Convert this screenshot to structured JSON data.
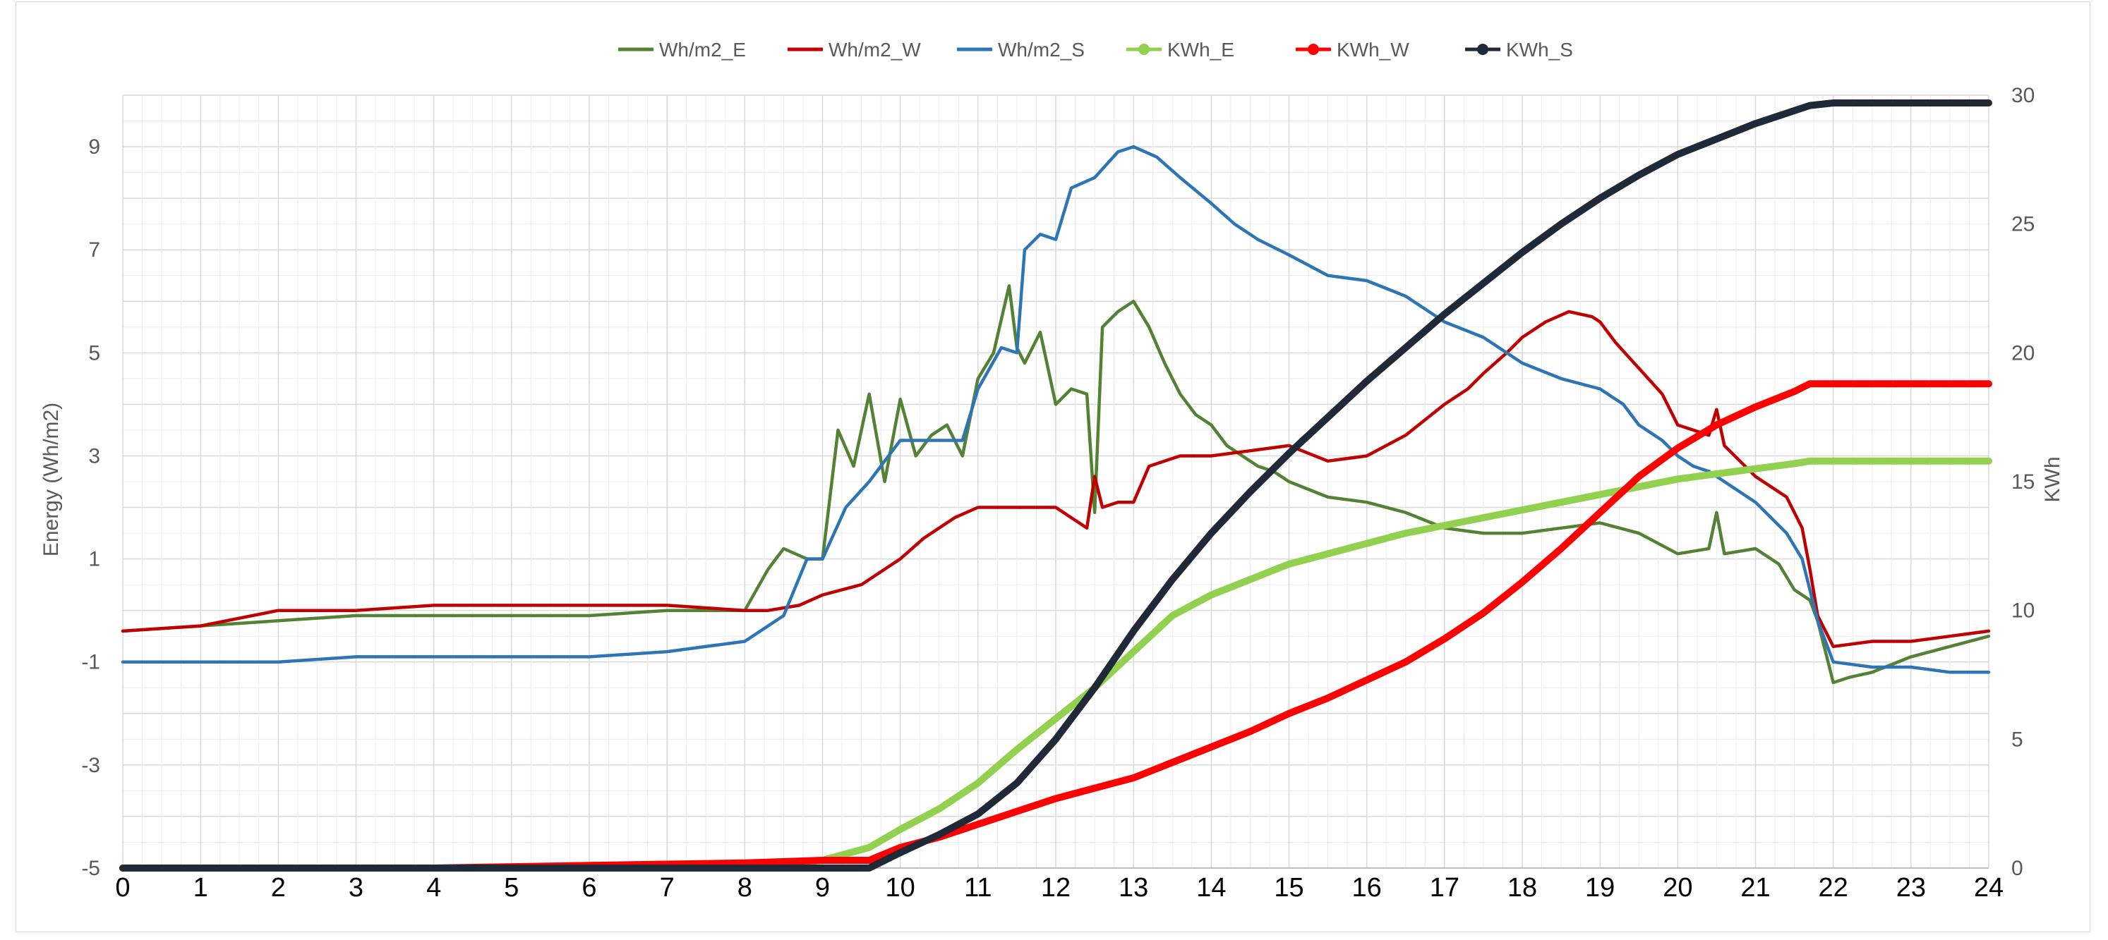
{
  "chart_data": {
    "type": "line",
    "title": "",
    "xlabel": "",
    "ylabel_left": "Energy (Wh/m2)",
    "ylabel_right": "KWh",
    "xlim": [
      0,
      24
    ],
    "ylim_left": [
      -5,
      10
    ],
    "ylim_right": [
      0,
      30
    ],
    "grid": true,
    "legend_position": "top-center",
    "x_ticks": [
      "0",
      "1",
      "2",
      "3",
      "4",
      "5",
      "6",
      "7",
      "8",
      "9",
      "10",
      "11",
      "12",
      "13",
      "14",
      "15",
      "16",
      "17",
      "18",
      "19",
      "20",
      "21",
      "22",
      "23",
      "24"
    ],
    "y_left_ticks": [
      "-5",
      "-3",
      "-1",
      "1",
      "3",
      "5",
      "7",
      "9"
    ],
    "y_right_ticks": [
      "0",
      "5",
      "10",
      "15",
      "20",
      "25",
      "30"
    ],
    "series": [
      {
        "name": "Wh/m2_E",
        "axis": "left",
        "color": "#548235",
        "marker": false,
        "x": [
          0,
          1,
          2,
          3,
          4,
          5,
          6,
          7,
          8,
          8.3,
          8.5,
          8.8,
          9,
          9.2,
          9.4,
          9.6,
          9.8,
          10,
          10.2,
          10.4,
          10.6,
          10.8,
          11,
          11.2,
          11.4,
          11.5,
          11.6,
          11.8,
          12,
          12.2,
          12.4,
          12.5,
          12.6,
          12.8,
          13,
          13.2,
          13.4,
          13.6,
          13.8,
          14,
          14.2,
          14.4,
          14.6,
          14.8,
          15,
          15.5,
          16,
          16.5,
          17,
          17.5,
          18,
          18.5,
          19,
          19.5,
          20,
          20.4,
          20.5,
          20.6,
          21,
          21.3,
          21.5,
          21.7,
          21.8,
          21.9,
          22,
          22.2,
          22.5,
          23,
          23.5,
          24
        ],
        "y": [
          -0.4,
          -0.3,
          -0.2,
          -0.1,
          -0.1,
          -0.1,
          -0.1,
          0,
          0,
          0.8,
          1.2,
          1.0,
          1.0,
          3.5,
          2.8,
          4.2,
          2.5,
          4.1,
          3.0,
          3.4,
          3.6,
          3.0,
          4.5,
          5.0,
          6.3,
          5.1,
          4.8,
          5.4,
          4.0,
          4.3,
          4.2,
          1.9,
          5.5,
          5.8,
          6.0,
          5.5,
          4.8,
          4.2,
          3.8,
          3.6,
          3.2,
          3.0,
          2.8,
          2.7,
          2.5,
          2.2,
          2.1,
          1.9,
          1.6,
          1.5,
          1.5,
          1.6,
          1.7,
          1.5,
          1.1,
          1.2,
          1.9,
          1.1,
          1.2,
          0.9,
          0.4,
          0.2,
          -0.2,
          -0.8,
          -1.4,
          -1.3,
          -1.2,
          -0.9,
          -0.7,
          -0.5
        ]
      },
      {
        "name": "Wh/m2_W",
        "axis": "left",
        "color": "#c00000",
        "marker": false,
        "x": [
          0,
          1,
          2,
          3,
          4,
          5,
          6,
          7,
          8,
          8.3,
          8.7,
          9,
          9.5,
          10,
          10.3,
          10.7,
          11,
          11.5,
          12,
          12.4,
          12.5,
          12.6,
          12.8,
          13,
          13.2,
          13.6,
          14,
          14.5,
          15,
          15.5,
          16,
          16.5,
          17,
          17.3,
          17.5,
          17.8,
          18,
          18.3,
          18.6,
          18.9,
          19,
          19.2,
          19.5,
          19.8,
          20,
          20.2,
          20.4,
          20.5,
          20.6,
          20.8,
          21,
          21.2,
          21.4,
          21.6,
          21.7,
          21.8,
          22,
          22.5,
          23,
          23.5,
          24
        ],
        "y": [
          -0.4,
          -0.3,
          0,
          0,
          0.1,
          0.1,
          0.1,
          0.1,
          0,
          0,
          0.1,
          0.3,
          0.5,
          1.0,
          1.4,
          1.8,
          2.0,
          2.0,
          2.0,
          1.6,
          2.6,
          2.0,
          2.1,
          2.1,
          2.8,
          3.0,
          3.0,
          3.1,
          3.2,
          2.9,
          3.0,
          3.4,
          4.0,
          4.3,
          4.6,
          5.0,
          5.3,
          5.6,
          5.8,
          5.7,
          5.6,
          5.2,
          4.7,
          4.2,
          3.6,
          3.5,
          3.4,
          3.9,
          3.2,
          2.9,
          2.6,
          2.4,
          2.2,
          1.6,
          0.8,
          -0.1,
          -0.7,
          -0.6,
          -0.6,
          -0.5,
          -0.4
        ]
      },
      {
        "name": "Wh/m2_S",
        "axis": "left",
        "color": "#2e75b6",
        "marker": false,
        "x": [
          0,
          1,
          2,
          3,
          4,
          5,
          6,
          7,
          8,
          8.5,
          8.8,
          9,
          9.3,
          9.6,
          10,
          10.5,
          10.8,
          11,
          11.3,
          11.5,
          11.6,
          11.8,
          12,
          12.2,
          12.5,
          12.8,
          13,
          13.3,
          13.6,
          14,
          14.3,
          14.6,
          15,
          15.5,
          16,
          16.5,
          17,
          17.5,
          18,
          18.5,
          19,
          19.3,
          19.5,
          19.8,
          20,
          20.2,
          20.4,
          20.6,
          20.8,
          21,
          21.2,
          21.4,
          21.6,
          21.8,
          22,
          22.5,
          23,
          23.5,
          24
        ],
        "y": [
          -1.0,
          -1.0,
          -1.0,
          -0.9,
          -0.9,
          -0.9,
          -0.9,
          -0.8,
          -0.6,
          -0.1,
          1.0,
          1.0,
          2.0,
          2.5,
          3.3,
          3.3,
          3.3,
          4.3,
          5.1,
          5.0,
          7.0,
          7.3,
          7.2,
          8.2,
          8.4,
          8.9,
          9.0,
          8.8,
          8.4,
          7.9,
          7.5,
          7.2,
          6.9,
          6.5,
          6.4,
          6.1,
          5.6,
          5.3,
          4.8,
          4.5,
          4.3,
          4.0,
          3.6,
          3.3,
          3.0,
          2.8,
          2.7,
          2.5,
          2.3,
          2.1,
          1.8,
          1.5,
          1.0,
          -0.2,
          -1.0,
          -1.1,
          -1.1,
          -1.2,
          -1.2
        ]
      },
      {
        "name": "KWh_E",
        "axis": "right",
        "color": "#92d050",
        "marker": true,
        "x": [
          0,
          8,
          9,
          9.6,
          10,
          10.5,
          11,
          11.5,
          12,
          12.5,
          13,
          13.5,
          14,
          14.5,
          15,
          15.5,
          16,
          16.5,
          17,
          17.5,
          18,
          18.5,
          19,
          19.5,
          20,
          20.5,
          21,
          21.5,
          21.7,
          22,
          23,
          24
        ],
        "y": [
          0,
          0,
          0.3,
          0.8,
          1.5,
          2.3,
          3.3,
          4.6,
          5.8,
          7.0,
          8.4,
          9.8,
          10.6,
          11.2,
          11.8,
          12.2,
          12.6,
          13.0,
          13.3,
          13.6,
          13.9,
          14.2,
          14.5,
          14.8,
          15.1,
          15.3,
          15.5,
          15.7,
          15.8,
          15.8,
          15.8,
          15.8
        ]
      },
      {
        "name": "KWh_W",
        "axis": "right",
        "color": "#ff0000",
        "marker": true,
        "x": [
          0,
          4,
          6,
          8,
          9,
          9.6,
          10,
          10.5,
          11,
          11.5,
          12,
          12.5,
          13,
          13.5,
          14,
          14.5,
          15,
          15.5,
          16,
          16.5,
          17,
          17.5,
          18,
          18.5,
          19,
          19.5,
          20,
          20.5,
          21,
          21.5,
          21.7,
          22,
          23,
          24
        ],
        "y": [
          0,
          0,
          0.1,
          0.2,
          0.3,
          0.3,
          0.8,
          1.2,
          1.7,
          2.2,
          2.7,
          3.1,
          3.5,
          4.1,
          4.7,
          5.3,
          6.0,
          6.6,
          7.3,
          8.0,
          8.9,
          9.9,
          11.1,
          12.4,
          13.8,
          15.2,
          16.3,
          17.2,
          17.9,
          18.5,
          18.8,
          18.8,
          18.8,
          18.8
        ]
      },
      {
        "name": "KWh_S",
        "axis": "right",
        "color": "#1f2937",
        "marker": true,
        "x": [
          0,
          9,
          9.6,
          10,
          10.5,
          11,
          11.5,
          12,
          12.5,
          13,
          13.5,
          14,
          14.5,
          15,
          15.5,
          16,
          16.5,
          17,
          17.5,
          18,
          18.5,
          19,
          19.5,
          20,
          20.5,
          21,
          21.5,
          21.7,
          22,
          23,
          24
        ],
        "y": [
          0,
          0,
          0,
          0.6,
          1.3,
          2.1,
          3.3,
          5.0,
          7.0,
          9.2,
          11.2,
          13.0,
          14.6,
          16.1,
          17.5,
          18.9,
          20.2,
          21.5,
          22.7,
          23.9,
          25.0,
          26.0,
          26.9,
          27.7,
          28.3,
          28.9,
          29.4,
          29.6,
          29.7,
          29.7,
          29.7
        ]
      }
    ]
  }
}
